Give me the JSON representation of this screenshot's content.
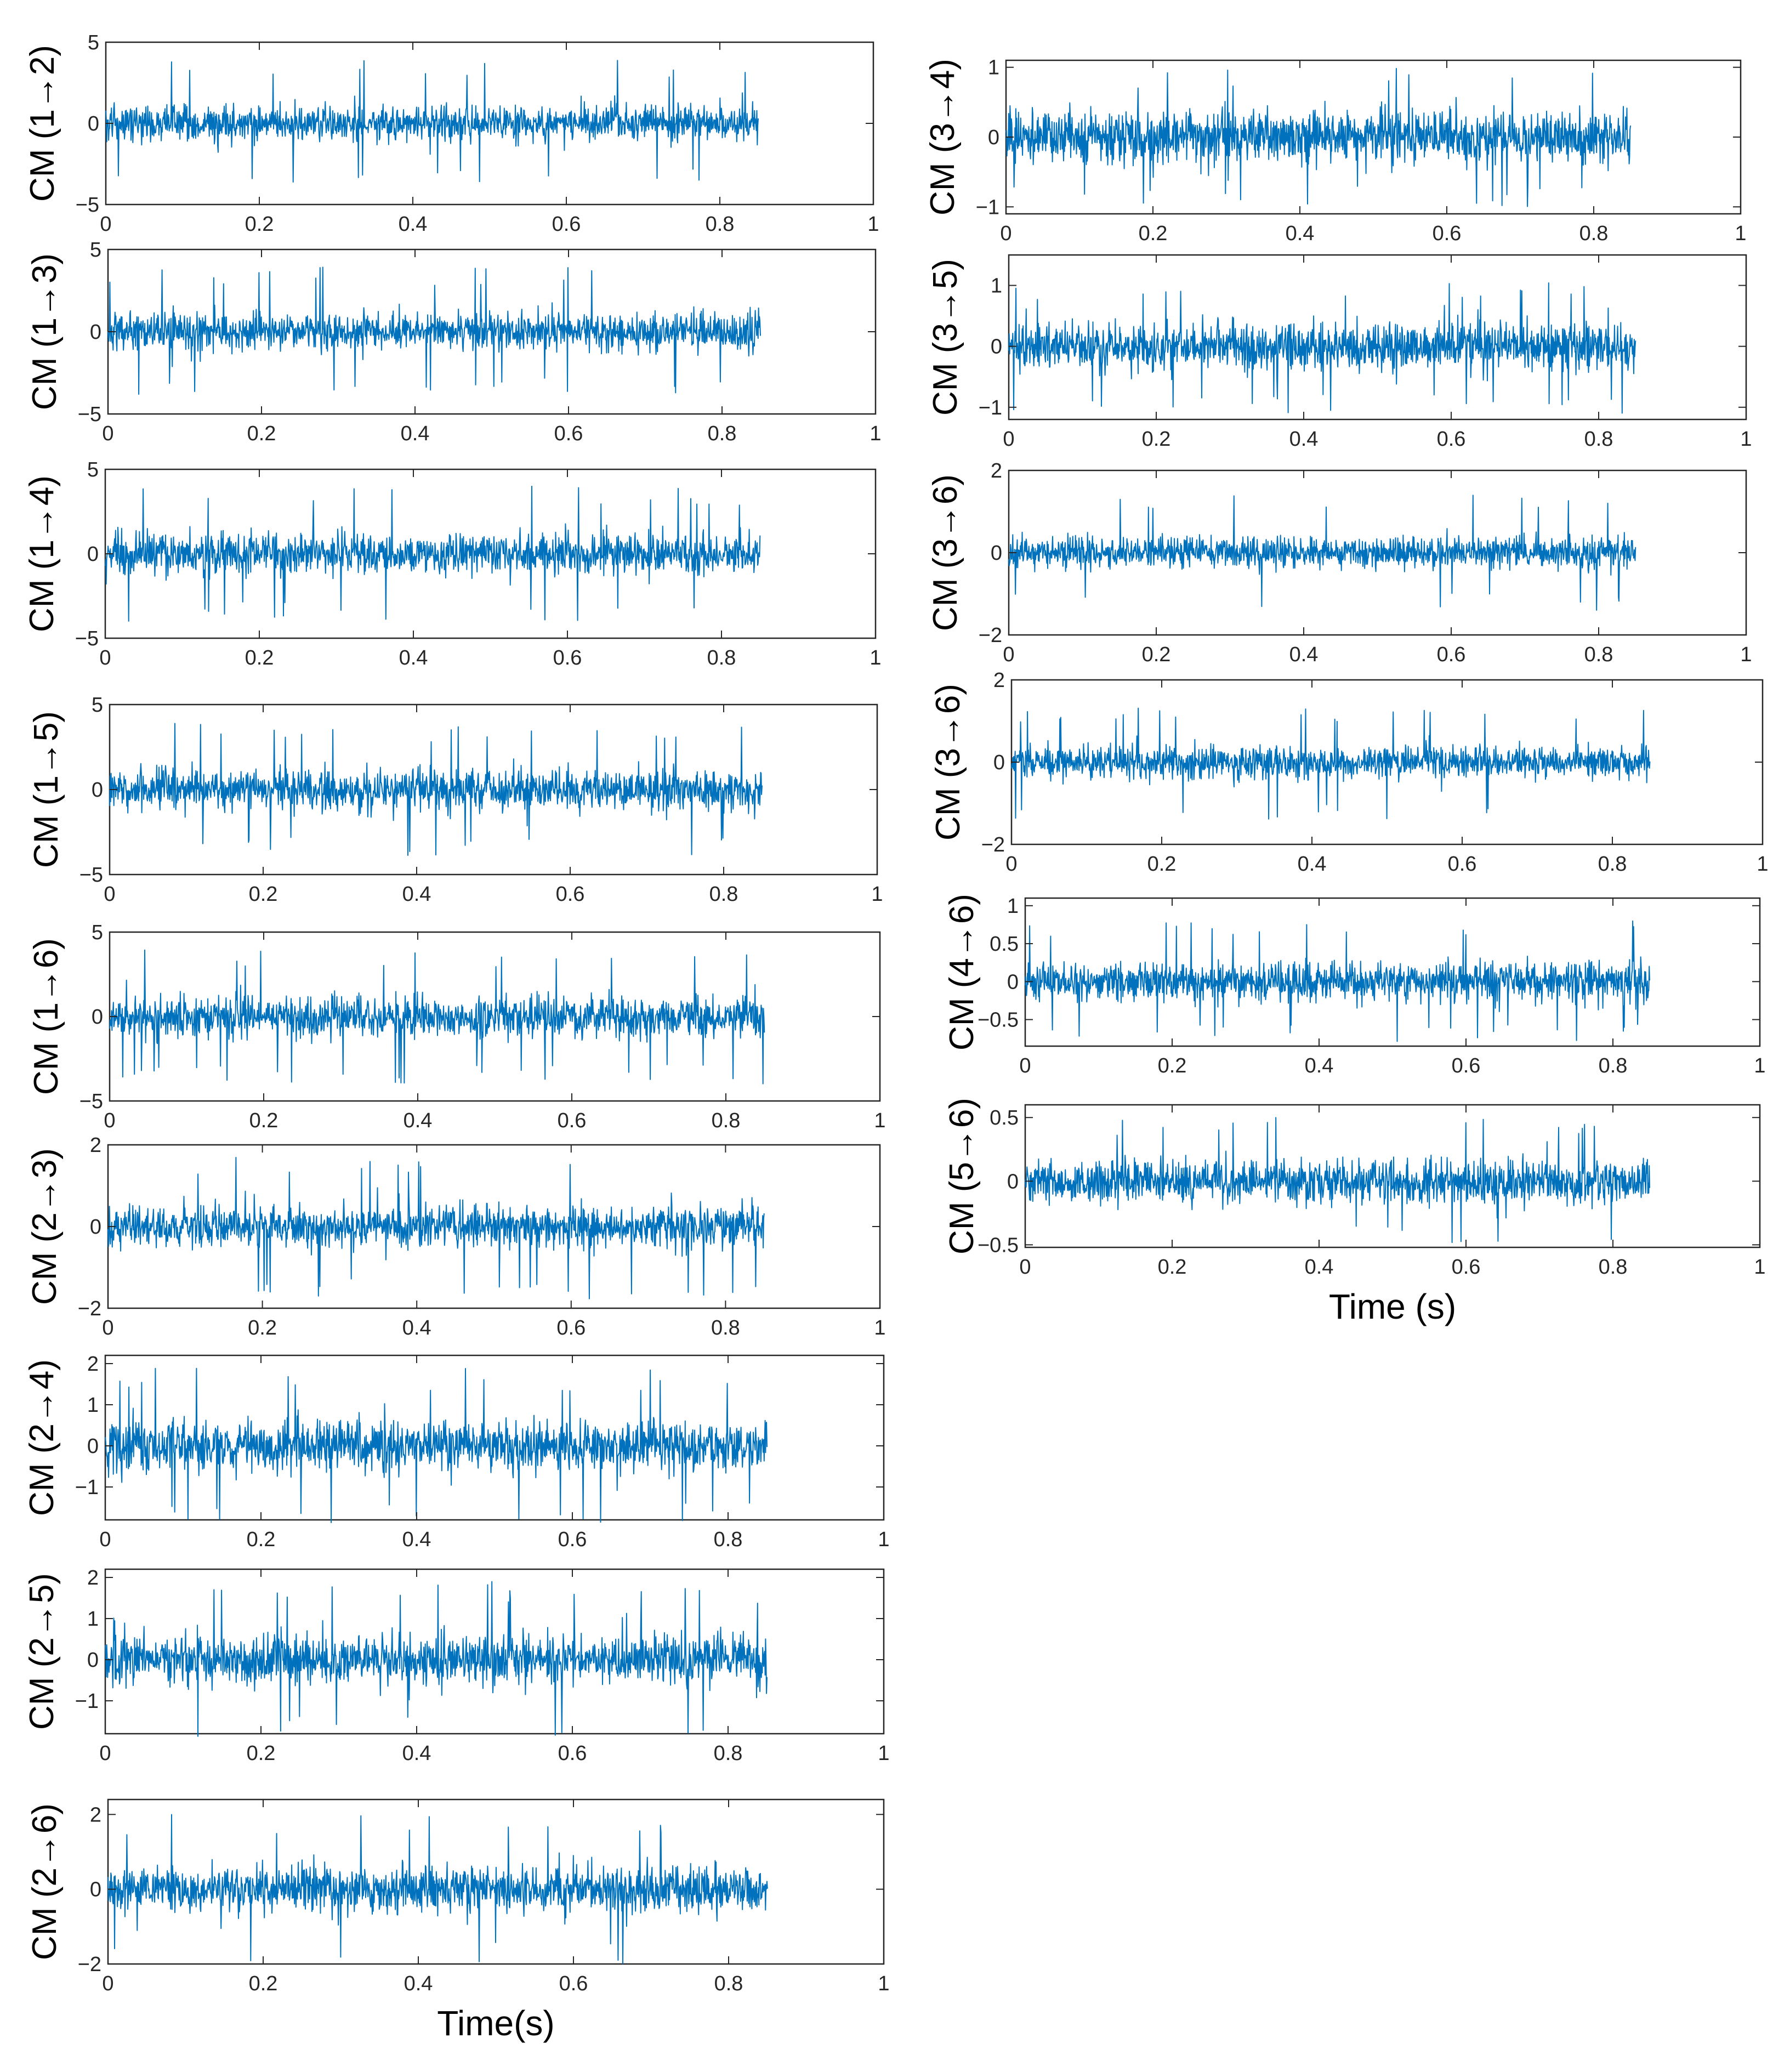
{
  "chart_data": [
    {
      "type": "line",
      "ylabel": "CM (1→2)",
      "xlim": [
        0,
        1
      ],
      "ylim": [
        -5,
        5
      ],
      "xticks": [
        "0",
        "0.2",
        "0.4",
        "0.6",
        "0.8",
        "1"
      ],
      "yticks": [
        {
          "v": 5,
          "t": "5"
        },
        {
          "v": 0,
          "t": "0"
        },
        {
          "v": -5,
          "t": "−5"
        }
      ],
      "x_end": 0.85,
      "amplitude": 1.3,
      "spike": 4.0,
      "color": "#0072BD",
      "xlabel": ""
    },
    {
      "type": "line",
      "ylabel": "CM (1→3)",
      "xlim": [
        0,
        1
      ],
      "ylim": [
        -5,
        5
      ],
      "xticks": [
        "0",
        "0.2",
        "0.4",
        "0.6",
        "0.8",
        "1"
      ],
      "yticks": [
        {
          "v": 5,
          "t": "5"
        },
        {
          "v": 0,
          "t": "0"
        },
        {
          "v": -5,
          "t": "−5"
        }
      ],
      "x_end": 0.85,
      "amplitude": 1.3,
      "spike": 4.0,
      "color": "#0072BD",
      "xlabel": ""
    },
    {
      "type": "line",
      "ylabel": "CM (1→4)",
      "xlim": [
        0,
        1
      ],
      "ylim": [
        -5,
        5
      ],
      "xticks": [
        "0",
        "0.2",
        "0.4",
        "0.6",
        "0.8",
        "1"
      ],
      "yticks": [
        {
          "v": 5,
          "t": "5"
        },
        {
          "v": 0,
          "t": "0"
        },
        {
          "v": -5,
          "t": "−5"
        }
      ],
      "x_end": 0.85,
      "amplitude": 1.4,
      "spike": 4.0,
      "color": "#0072BD",
      "xlabel": ""
    },
    {
      "type": "line",
      "ylabel": "CM (1→5)",
      "xlim": [
        0,
        1
      ],
      "ylim": [
        -5,
        5
      ],
      "xticks": [
        "0",
        "0.2",
        "0.4",
        "0.6",
        "0.8",
        "1"
      ],
      "yticks": [
        {
          "v": 5,
          "t": "5"
        },
        {
          "v": 0,
          "t": "0"
        },
        {
          "v": -5,
          "t": "−5"
        }
      ],
      "x_end": 0.85,
      "amplitude": 1.4,
      "spike": 4.0,
      "color": "#0072BD",
      "xlabel": ""
    },
    {
      "type": "line",
      "ylabel": "CM (1→6)",
      "xlim": [
        0,
        1
      ],
      "ylim": [
        -5,
        5
      ],
      "xticks": [
        "0",
        "0.2",
        "0.4",
        "0.6",
        "0.8",
        "1"
      ],
      "yticks": [
        {
          "v": 5,
          "t": "5"
        },
        {
          "v": 0,
          "t": "0"
        },
        {
          "v": -5,
          "t": "−5"
        }
      ],
      "x_end": 0.85,
      "amplitude": 1.4,
      "spike": 4.0,
      "color": "#0072BD",
      "xlabel": ""
    },
    {
      "type": "line",
      "ylabel": "CM (2→3)",
      "xlim": [
        0,
        1
      ],
      "ylim": [
        -2,
        2
      ],
      "xticks": [
        "0",
        "0.2",
        "0.4",
        "0.6",
        "0.8",
        "1"
      ],
      "yticks": [
        {
          "v": 2,
          "t": "2"
        },
        {
          "v": 0,
          "t": "0"
        },
        {
          "v": -2,
          "t": "−2"
        }
      ],
      "x_end": 0.85,
      "amplitude": 0.6,
      "spike": 1.8,
      "color": "#0072BD",
      "xlabel": ""
    },
    {
      "type": "line",
      "ylabel": "CM (2→4)",
      "xlim": [
        0,
        1
      ],
      "ylim": [
        -1.8,
        2.2
      ],
      "xticks": [
        "0",
        "0.2",
        "0.4",
        "0.6",
        "0.8",
        "1"
      ],
      "yticks": [
        {
          "v": 2,
          "t": "2"
        },
        {
          "v": 1,
          "t": "1"
        },
        {
          "v": 0,
          "t": "0"
        },
        {
          "v": -1,
          "t": "−1"
        }
      ],
      "x_end": 0.85,
      "amplitude": 0.7,
      "spike": 1.9,
      "color": "#0072BD",
      "xlabel": ""
    },
    {
      "type": "line",
      "ylabel": "CM (2→5)",
      "xlim": [
        0,
        1
      ],
      "ylim": [
        -1.8,
        2.2
      ],
      "xticks": [
        "0",
        "0.2",
        "0.4",
        "0.6",
        "0.8",
        "1"
      ],
      "yticks": [
        {
          "v": 2,
          "t": "2"
        },
        {
          "v": 1,
          "t": "1"
        },
        {
          "v": 0,
          "t": "0"
        },
        {
          "v": -1,
          "t": "−1"
        }
      ],
      "x_end": 0.85,
      "amplitude": 0.7,
      "spike": 1.9,
      "color": "#0072BD",
      "xlabel": ""
    },
    {
      "type": "line",
      "ylabel": "CM (2→6)",
      "xlim": [
        0,
        1
      ],
      "ylim": [
        -2,
        2.4
      ],
      "xticks": [
        "0",
        "0.2",
        "0.4",
        "0.6",
        "0.8",
        "1"
      ],
      "yticks": [
        {
          "v": 2,
          "t": "2"
        },
        {
          "v": 0,
          "t": "0"
        },
        {
          "v": -2,
          "t": "−2"
        }
      ],
      "x_end": 0.85,
      "amplitude": 0.75,
      "spike": 2.0,
      "color": "#0072BD",
      "xlabel": "Time(s)"
    },
    {
      "type": "line",
      "ylabel": "CM (3→4)",
      "xlim": [
        0,
        1
      ],
      "ylim": [
        -1.1,
        1.1
      ],
      "xticks": [
        "0",
        "0.2",
        "0.4",
        "0.6",
        "0.8",
        "1"
      ],
      "yticks": [
        {
          "v": 1,
          "t": "1"
        },
        {
          "v": 0,
          "t": "0"
        },
        {
          "v": -1,
          "t": "−1"
        }
      ],
      "x_end": 0.85,
      "amplitude": 0.45,
      "spike": 1.0,
      "color": "#0072BD",
      "xlabel": ""
    },
    {
      "type": "line",
      "ylabel": "CM (3→5)",
      "xlim": [
        0,
        1
      ],
      "ylim": [
        -1.2,
        1.5
      ],
      "xticks": [
        "0",
        "0.2",
        "0.4",
        "0.6",
        "0.8",
        "1"
      ],
      "yticks": [
        {
          "v": 1,
          "t": "1"
        },
        {
          "v": 0,
          "t": "0"
        },
        {
          "v": -1,
          "t": "−1"
        }
      ],
      "x_end": 0.85,
      "amplitude": 0.45,
      "spike": 1.1,
      "color": "#0072BD",
      "xlabel": ""
    },
    {
      "type": "line",
      "ylabel": "CM (3→6)",
      "xlim": [
        0,
        1
      ],
      "ylim": [
        -2,
        2
      ],
      "xticks": [
        "0",
        "0.2",
        "0.4",
        "0.6",
        "0.8",
        "1"
      ],
      "yticks": [
        {
          "v": 2,
          "t": "2"
        },
        {
          "v": 0,
          "t": "0"
        },
        {
          "v": -2,
          "t": "−2"
        }
      ],
      "x_end": 0.85,
      "amplitude": 0.45,
      "spike": 1.4,
      "color": "#0072BD",
      "xlabel": ""
    },
    {
      "type": "line",
      "ylabel": "CM (3→6)",
      "xlim": [
        0,
        1
      ],
      "ylim": [
        -2,
        2
      ],
      "xticks": [
        "0",
        "0.2",
        "0.4",
        "0.6",
        "0.8",
        "1"
      ],
      "yticks": [
        {
          "v": 2,
          "t": "2"
        },
        {
          "v": 0,
          "t": "0"
        },
        {
          "v": -2,
          "t": "−2"
        }
      ],
      "x_end": 0.85,
      "amplitude": 0.45,
      "spike": 1.4,
      "color": "#0072BD",
      "xlabel": ""
    },
    {
      "type": "line",
      "ylabel": "CM (4→6)",
      "xlim": [
        0,
        1
      ],
      "ylim": [
        -0.85,
        1.1
      ],
      "xticks": [
        "0",
        "0.2",
        "0.4",
        "0.6",
        "0.8",
        "1"
      ],
      "yticks": [
        {
          "v": 1,
          "t": "1"
        },
        {
          "v": 0.5,
          "t": "0.5"
        },
        {
          "v": 0,
          "t": "0"
        },
        {
          "v": -0.5,
          "t": "−0.5"
        }
      ],
      "x_end": 0.85,
      "amplitude": 0.3,
      "spike": 0.8,
      "color": "#0072BD",
      "xlabel": ""
    },
    {
      "type": "line",
      "ylabel": "CM (5→6)",
      "xlim": [
        0,
        1
      ],
      "ylim": [
        -0.52,
        0.6
      ],
      "xticks": [
        "0",
        "0.2",
        "0.4",
        "0.6",
        "0.8",
        "1"
      ],
      "yticks": [
        {
          "v": 0.5,
          "t": "0.5"
        },
        {
          "v": 0,
          "t": "0"
        },
        {
          "v": -0.5,
          "t": "−0.5"
        }
      ],
      "x_end": 0.85,
      "amplitude": 0.2,
      "spike": 0.5,
      "color": "#0072BD",
      "xlabel": "Time (s)"
    }
  ]
}
